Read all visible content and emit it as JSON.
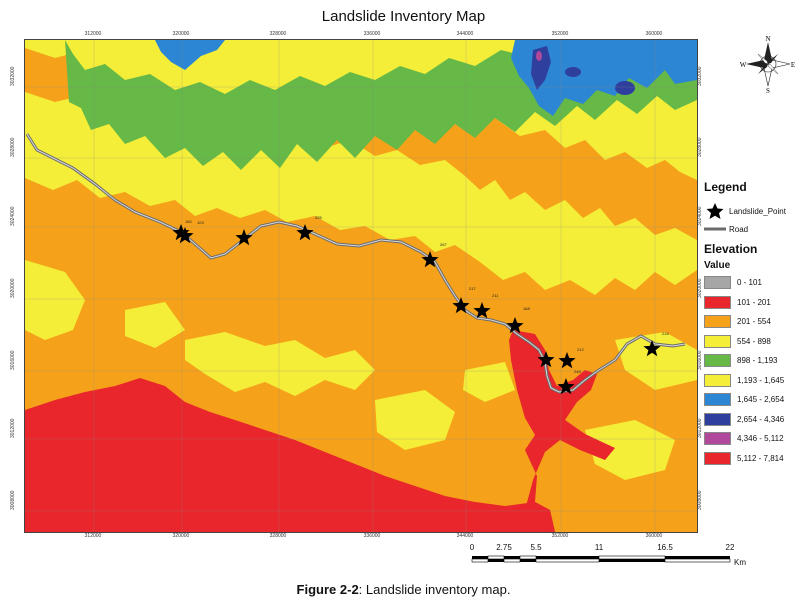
{
  "title": "Landslide Inventory Map",
  "x_ticks": [
    "312000",
    "320000",
    "328000",
    "336000",
    "344000",
    "352000",
    "360000"
  ],
  "y_ticks": [
    "3032000",
    "3028000",
    "3024000",
    "3020000",
    "3016000",
    "3012000",
    "3008000",
    "3004000"
  ],
  "compass": {
    "n": "N",
    "s": "S",
    "e": "E",
    "w": "W"
  },
  "legend": {
    "title": "Legend",
    "point_label": "Landslide_Point",
    "road_label": "Road",
    "elevation_title": "Elevation",
    "value_label": "Value",
    "classes": [
      {
        "label": "0 - 101",
        "color": "#a6a6a6"
      },
      {
        "label": "101 - 201",
        "color": "#e8262b"
      },
      {
        "label": "201 - 554",
        "color": "#f5a21a"
      },
      {
        "label": "554 - 898",
        "color": "#f4ee38"
      },
      {
        "label": "898 - 1,193",
        "color": "#66b847"
      },
      {
        "label": "1,193 - 1,645",
        "color": "#f4ee38"
      },
      {
        "label": "1,645 - 2,654",
        "color": "#2d86d3"
      },
      {
        "label": "2,654 - 4,346",
        "color": "#2f3f9e"
      },
      {
        "label": "4,346 - 5,112",
        "color": "#b0489b"
      },
      {
        "label": "5,112 - 7,814",
        "color": "#e8262b"
      }
    ]
  },
  "landslide_labels": [
    "180",
    "103",
    "222",
    "255",
    "267",
    "217",
    "211",
    "168",
    "199",
    "212",
    "248",
    "234"
  ],
  "scale": {
    "ticks": [
      "0",
      "2.75",
      "5.5",
      "11",
      "16.5",
      "22"
    ],
    "unit": "Km"
  },
  "caption": {
    "prefix": "Figure 2-2",
    "text": ": Landslide inventory map."
  }
}
